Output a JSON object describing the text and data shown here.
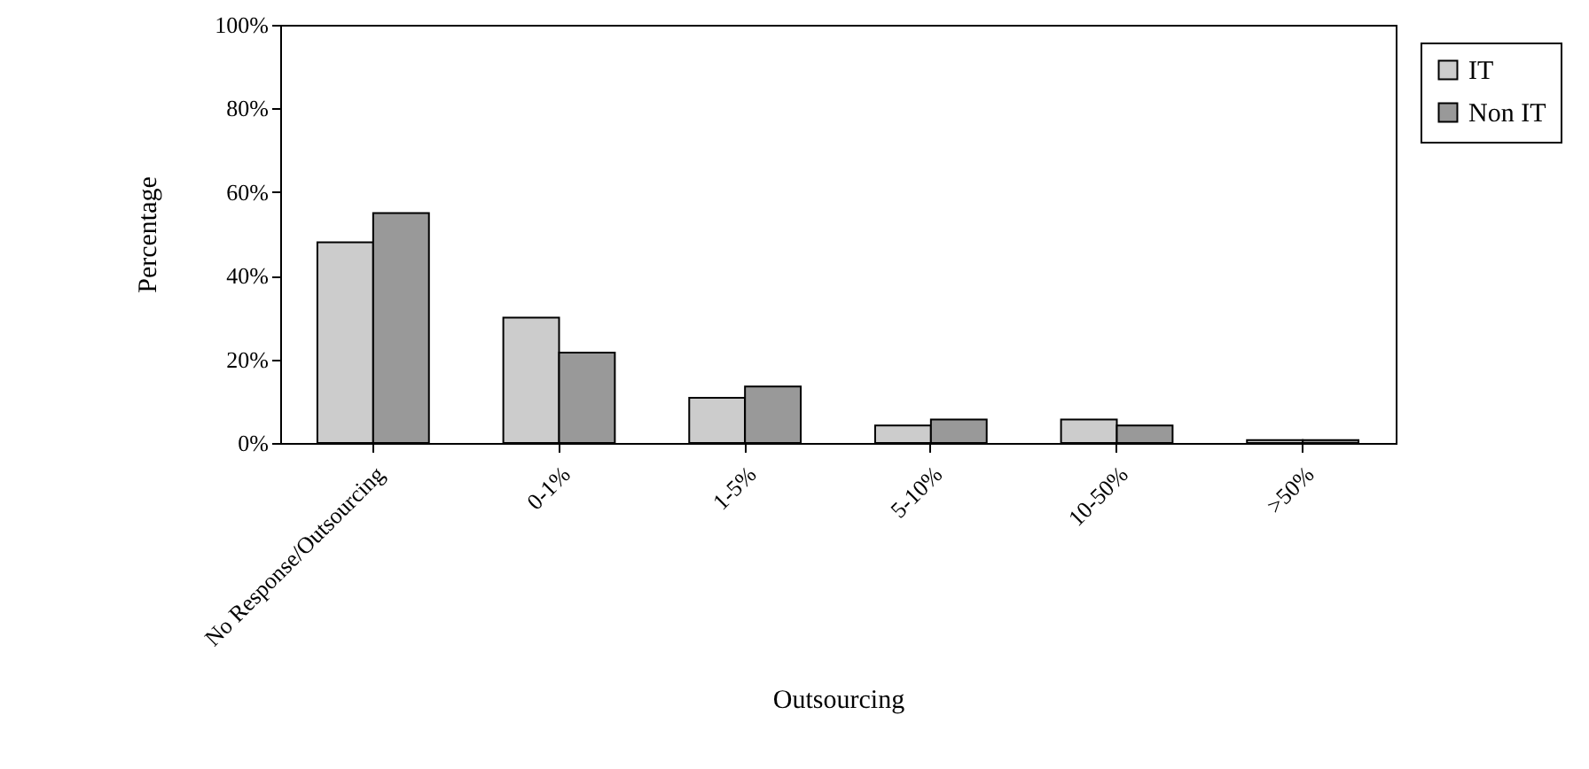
{
  "chart_data": {
    "type": "bar",
    "xlabel": "Outsourcing",
    "ylabel": "Percentage",
    "categories": [
      "No Response/Outsourcing",
      "0-1%",
      "1-5%",
      "5-10%",
      "10-50%",
      ">50%"
    ],
    "series": [
      {
        "name": "IT",
        "color": "#cccccc",
        "values": [
          48,
          30,
          10.8,
          4.2,
          5.6,
          0.7
        ]
      },
      {
        "name": "Non IT",
        "color": "#999999",
        "values": [
          55,
          21.6,
          13.5,
          5.6,
          4.2,
          0.7
        ]
      }
    ],
    "ylim": [
      0,
      100
    ],
    "yticks": [
      {
        "value": 0,
        "label": "0%"
      },
      {
        "value": 20,
        "label": "20%"
      },
      {
        "value": 40,
        "label": "40%"
      },
      {
        "value": 60,
        "label": "60%"
      },
      {
        "value": 80,
        "label": "80%"
      },
      {
        "value": 100,
        "label": "100%"
      }
    ],
    "grid": false,
    "legend": "right"
  }
}
